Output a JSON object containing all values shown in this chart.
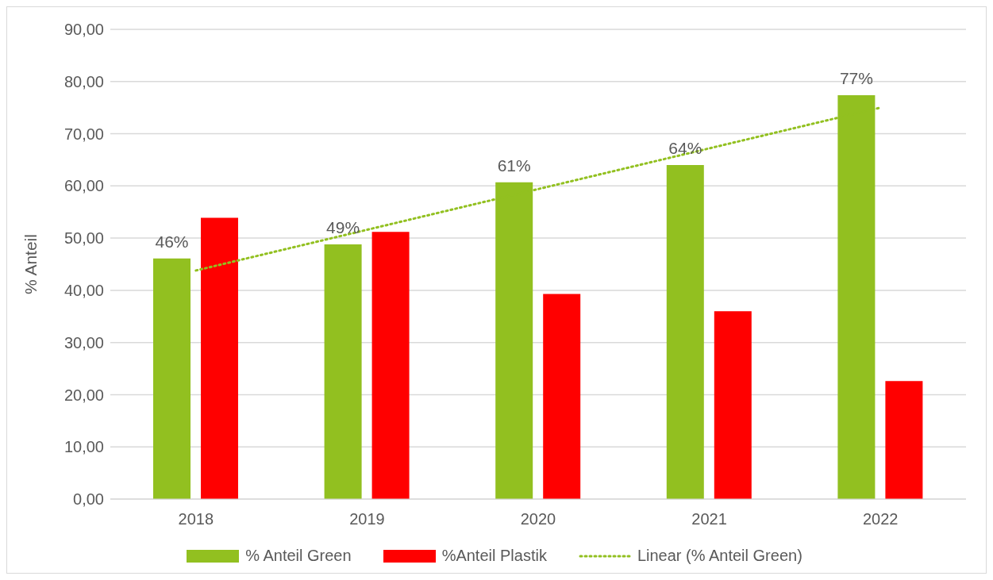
{
  "chart_data": {
    "type": "bar",
    "ylabel": "% Anteil",
    "categories": [
      "2018",
      "2019",
      "2020",
      "2021",
      "2022"
    ],
    "series": [
      {
        "name": "% Anteil Green",
        "color": "#92c020",
        "values": [
          46.1,
          48.8,
          60.7,
          64.0,
          77.4
        ],
        "value_labels": [
          "46%",
          "49%",
          "61%",
          "64%",
          "77%"
        ]
      },
      {
        "name": "%Anteil Plastik",
        "color": "#ff0000",
        "values": [
          53.9,
          51.2,
          39.3,
          36.0,
          22.6
        ]
      },
      {
        "name": "Linear (% Anteil Green)",
        "type": "line",
        "color": "#92c020",
        "line_style": "dotted",
        "marker": "none",
        "values": [
          43.8,
          51.6,
          59.4,
          67.2,
          75.0
        ]
      }
    ],
    "ylim": [
      0,
      90
    ],
    "yticks": [
      {
        "value": 0,
        "label": "0,00"
      },
      {
        "value": 10,
        "label": "10,00"
      },
      {
        "value": 20,
        "label": "20,00"
      },
      {
        "value": 30,
        "label": "30,00"
      },
      {
        "value": 40,
        "label": "40,00"
      },
      {
        "value": 50,
        "label": "50,00"
      },
      {
        "value": 60,
        "label": "60,00"
      },
      {
        "value": 70,
        "label": "70,00"
      },
      {
        "value": 80,
        "label": "80,00"
      },
      {
        "value": 90,
        "label": "90,00"
      }
    ],
    "grid": "y",
    "legend": "bottom"
  }
}
